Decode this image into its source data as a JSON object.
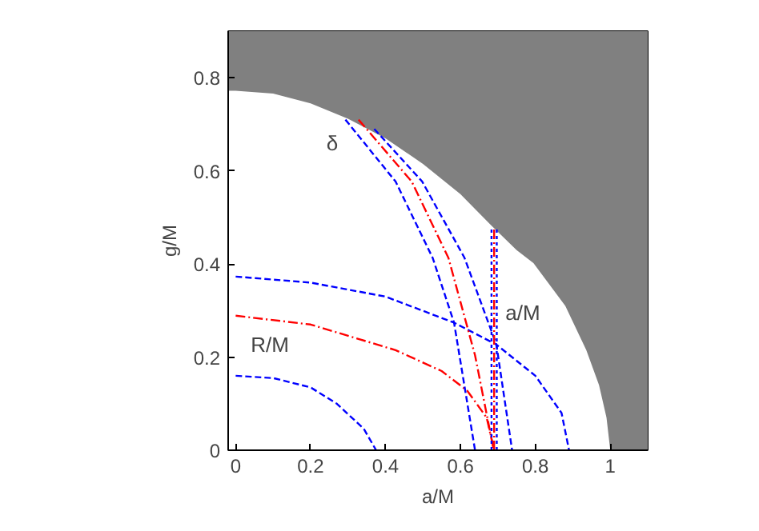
{
  "chart_data": {
    "type": "line",
    "xlabel": "a/M",
    "ylabel": "g/M",
    "xlim": [
      -0.02,
      1.1
    ],
    "ylim": [
      0,
      0.9
    ],
    "xticks": [
      0,
      0.2,
      0.4,
      0.6,
      0.8,
      1
    ],
    "yticks": [
      0,
      0.2,
      0.4,
      0.6,
      0.8
    ],
    "series": [
      {
        "type": "area",
        "color": "#ffffff",
        "x": [
          -0.02,
          0,
          0.1,
          0.2,
          0.3,
          0.4,
          0.5,
          0.6,
          0.682,
          0.75,
          0.795,
          0.88,
          0.936,
          0.97,
          0.99,
          1.0
        ],
        "values": [
          0.772,
          0.772,
          0.766,
          0.745,
          0.712,
          0.67,
          0.615,
          0.55,
          0.483,
          0.43,
          0.402,
          0.31,
          0.215,
          0.14,
          0.07,
          0
        ]
      },
      {
        "color": "#0000ff",
        "line_style": "dashed",
        "x": [
          0,
          0.1,
          0.2,
          0.27,
          0.342,
          0.375
        ],
        "values": [
          0.16,
          0.155,
          0.135,
          0.1,
          0.046,
          0
        ]
      },
      {
        "color": "#0000ff",
        "line_style": "dashed",
        "x": [
          0,
          0.2,
          0.4,
          0.583,
          0.696,
          0.8,
          0.87,
          0.89
        ],
        "values": [
          0.373,
          0.36,
          0.33,
          0.274,
          0.227,
          0.16,
          0.08,
          0
        ]
      },
      {
        "color": "#ff0000",
        "line_style": "dashdot",
        "x": [
          0,
          0.2,
          0.427,
          0.55,
          0.618,
          0.67,
          0.69
        ],
        "values": [
          0.289,
          0.27,
          0.215,
          0.17,
          0.128,
          0.07,
          0
        ]
      },
      {
        "color": "#0000ff",
        "line_style": "dashed",
        "x": [
          0.293,
          0.427,
          0.526,
          0.583,
          0.639
        ],
        "values": [
          0.71,
          0.577,
          0.413,
          0.274,
          0
        ]
      },
      {
        "color": "#ff0000",
        "line_style": "dashdot",
        "x": [
          0.328,
          0.47,
          0.568,
          0.639,
          0.689
        ],
        "values": [
          0.71,
          0.577,
          0.413,
          0.204,
          0
        ]
      },
      {
        "color": "#0000ff",
        "line_style": "dashed",
        "x": [
          0.37,
          0.498,
          0.611,
          0.696,
          0.738
        ],
        "values": [
          0.69,
          0.577,
          0.413,
          0.227,
          0
        ]
      },
      {
        "color": "#0000ff",
        "line_style": "dotted",
        "x": [
          0.683,
          0.683
        ],
        "values": [
          0,
          0.477
        ]
      },
      {
        "color": "#0000ff",
        "line_style": "dotted",
        "x": [
          0.697,
          0.697
        ],
        "values": [
          0,
          0.477
        ]
      },
      {
        "color": "#ff0000",
        "line_style": "dashdot",
        "x": [
          0.69,
          0.69
        ],
        "values": [
          0,
          0.477
        ]
      }
    ],
    "bands": [
      {
        "axis": "y",
        "from": 0,
        "to": 0.9,
        "color": "#808080"
      }
    ],
    "annotations": [
      "δ",
      "R/M",
      "a/M"
    ]
  }
}
